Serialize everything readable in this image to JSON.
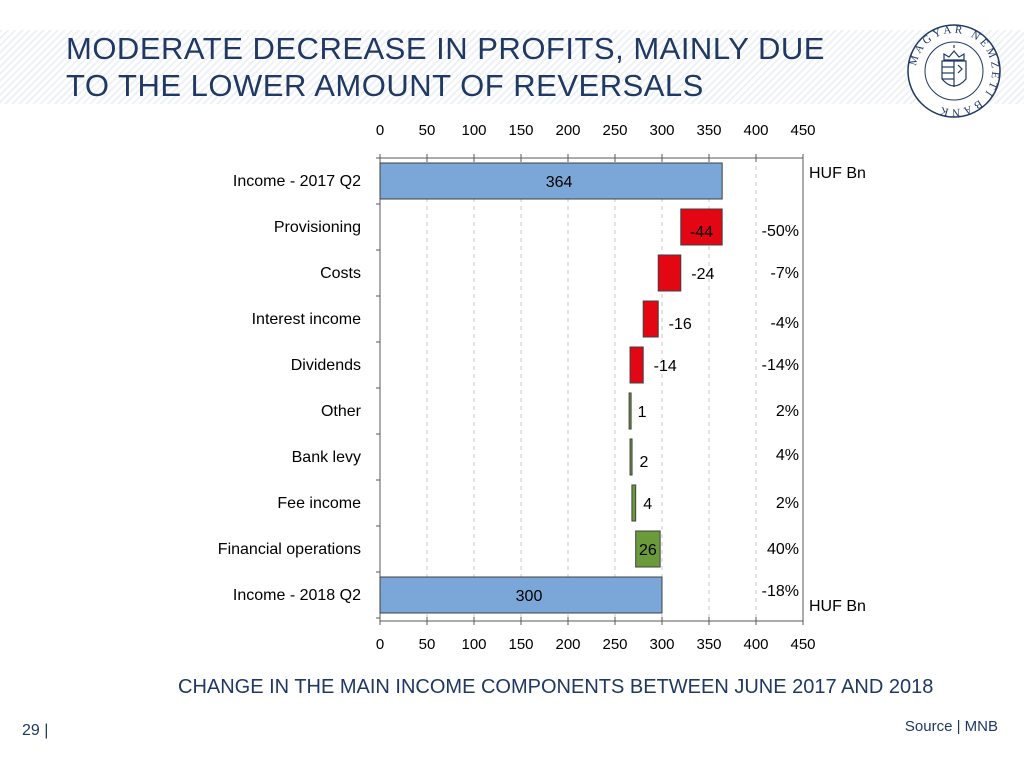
{
  "title": {
    "line1": "MODERATE DECREASE IN PROFITS, MAINLY DUE",
    "line2": "TO THE LOWER AMOUNT OF REVERSALS"
  },
  "logo": {
    "text": "MAGYAR NEMZETI BANK"
  },
  "chart_data": {
    "type": "bar",
    "subtype": "waterfall",
    "orientation": "horizontal",
    "categories": [
      "Income - 2017 Q2",
      "Provisioning",
      "Costs",
      "Interest income",
      "Dividends",
      "Other",
      "Bank levy",
      "Fee income",
      "Financial operations",
      "Income - 2018 Q2"
    ],
    "values": [
      364,
      -44,
      -24,
      -16,
      -14,
      1,
      2,
      4,
      26,
      300
    ],
    "bar_kind": [
      "total",
      "change",
      "change",
      "change",
      "change",
      "change",
      "change",
      "change",
      "change",
      "total"
    ],
    "bar_start": [
      0,
      320,
      296,
      280,
      266,
      265,
      266,
      268,
      272,
      0
    ],
    "bar_end": [
      364,
      364,
      320,
      296,
      280,
      266,
      268,
      272,
      298,
      300
    ],
    "data_labels": [
      "364",
      "-44",
      "-24",
      "-16",
      "-14",
      "1",
      "2",
      "4",
      "26",
      "300"
    ],
    "percent_labels": [
      "",
      "-50%",
      "-7%",
      "-4%",
      "-14%",
      "2%",
      "4%",
      "2%",
      "40%",
      "-18%"
    ],
    "unit_label_top": "HUF Bn",
    "unit_label_bottom": "HUF Bn",
    "x_ticks": [
      "0",
      "50",
      "100",
      "150",
      "200",
      "250",
      "300",
      "350",
      "400",
      "450"
    ],
    "xlim": [
      0,
      450
    ],
    "x_axis_top": true,
    "x_axis_bottom": true,
    "grid": "vertical dashed",
    "colors": {
      "total": "#7aa6d8",
      "negative": "#e30613",
      "positive": "#6b9a3a",
      "outline": "#404040"
    }
  },
  "caption": "CHANGE IN THE MAIN INCOME COMPONENTS BETWEEN JUNE 2017 AND 2018",
  "page_number": "29 |",
  "source": "Source | MNB"
}
